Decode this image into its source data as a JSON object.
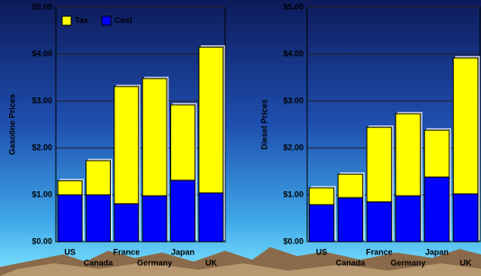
{
  "chart_data": [
    {
      "type": "bar",
      "stacked": true,
      "y_label": "Gasoline Prices",
      "categories": [
        "US",
        "Canada",
        "France",
        "Germany",
        "Japan",
        "UK"
      ],
      "series": [
        {
          "name": "Cost",
          "color": "#0000ff",
          "values": [
            1.0,
            1.0,
            0.81,
            0.98,
            1.31,
            1.04
          ]
        },
        {
          "name": "Tax",
          "color": "#ffff00",
          "values": [
            0.3,
            0.73,
            2.5,
            2.5,
            1.61,
            3.11
          ]
        }
      ],
      "ylim": [
        0,
        5
      ],
      "yticks": [
        {
          "value": 0,
          "label": "$0.00"
        },
        {
          "value": 1,
          "label": "$1.00"
        },
        {
          "value": 2,
          "label": "$2.00"
        },
        {
          "value": 3,
          "label": "$3.00"
        },
        {
          "value": 4,
          "label": "$4.00"
        },
        {
          "value": 5,
          "label": "$5.00"
        }
      ],
      "grid": true,
      "legend": "upper left"
    },
    {
      "type": "bar",
      "stacked": true,
      "y_label": "Diesel Prices",
      "categories": [
        "US",
        "Canada",
        "France",
        "Germany",
        "Japan",
        "UK"
      ],
      "series": [
        {
          "name": "Cost",
          "color": "#0000ff",
          "values": [
            0.79,
            0.94,
            0.85,
            0.98,
            1.38,
            1.02
          ]
        },
        {
          "name": "Tax",
          "color": "#ffff00",
          "values": [
            0.36,
            0.5,
            1.59,
            1.75,
            1.0,
            2.9
          ]
        }
      ],
      "ylim": [
        0,
        5
      ],
      "yticks": [
        {
          "value": 0,
          "label": "$0.00"
        },
        {
          "value": 1,
          "label": "$1.00"
        },
        {
          "value": 2,
          "label": "$2.00"
        },
        {
          "value": 3,
          "label": "$3.00"
        },
        {
          "value": 4,
          "label": "$4.00"
        },
        {
          "value": 5,
          "label": "$5.00"
        }
      ],
      "grid": true
    }
  ]
}
